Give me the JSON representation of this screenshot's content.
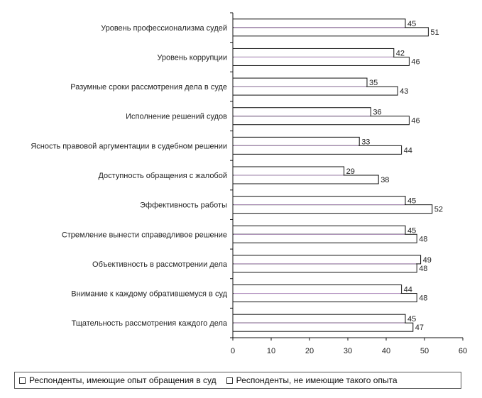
{
  "chart_data": {
    "type": "bar",
    "orientation": "horizontal",
    "categories": [
      "Уровень профессионализма судей",
      "Уровень коррупции",
      "Разумные сроки рассмотрения дела в суде",
      "Исполнение решений судов",
      "Ясность правовой аргументации в судебном решении",
      "Доступность обращения с жалобой",
      "Эффективность работы",
      "Стремление вынести справедливое решение",
      "Объективность в рассмотрении дела",
      "Внимание к каждому обратившемуся в суд",
      "Тщательность рассмотрения каждого дела"
    ],
    "series": [
      {
        "name": "Респонденты, имеющие опыт обращения в суд",
        "values": [
          45,
          42,
          35,
          36,
          33,
          29,
          45,
          45,
          49,
          44,
          45
        ]
      },
      {
        "name": "Респонденты, не имеющие такого опыта",
        "values": [
          51,
          46,
          43,
          46,
          44,
          38,
          52,
          48,
          48,
          48,
          47
        ]
      }
    ],
    "xlim": [
      0,
      60
    ],
    "xticks": [
      "0",
      "10",
      "20",
      "30",
      "40",
      "50",
      "60"
    ],
    "legend": "bottom",
    "grid": false
  }
}
